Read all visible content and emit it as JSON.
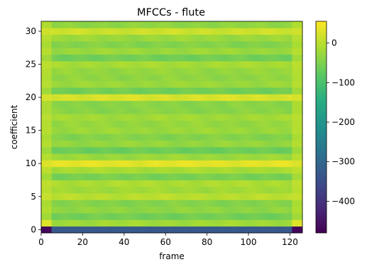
{
  "chart_data": {
    "type": "heatmap",
    "title": "MFCCs - flute",
    "xlabel": "frame",
    "ylabel": "coefficient",
    "xlim": [
      0,
      126
    ],
    "ylim": [
      -0.5,
      31.5
    ],
    "n_frames": 126,
    "n_coefficients": 32,
    "x_ticks": [
      0,
      20,
      40,
      60,
      80,
      100,
      120
    ],
    "y_ticks": [
      0,
      5,
      10,
      15,
      20,
      25,
      30
    ],
    "colormap": "viridis",
    "colorbar": {
      "min": -480,
      "max": 55,
      "ticks": [
        0,
        -100,
        -200,
        -300,
        -400
      ]
    },
    "coefficient_levels": [
      -330,
      -20,
      -60,
      -35,
      -45,
      0,
      -20,
      -10,
      -55,
      -15,
      35,
      -25,
      -65,
      -30,
      -45,
      -25,
      -30,
      -20,
      -40,
      -40,
      25,
      -60,
      -25,
      -35,
      -30,
      -15,
      -60,
      -25,
      -45,
      -25,
      15,
      -35
    ],
    "edge_frames": {
      "start_end": 5,
      "end_start": 121,
      "coefficient_0_edge_level": -470,
      "coefficient_1_edge_level": 30
    },
    "colors": {
      "viridis_low": "#440154",
      "viridis_mid": "#21918c",
      "viridis_high": "#fde725"
    }
  }
}
